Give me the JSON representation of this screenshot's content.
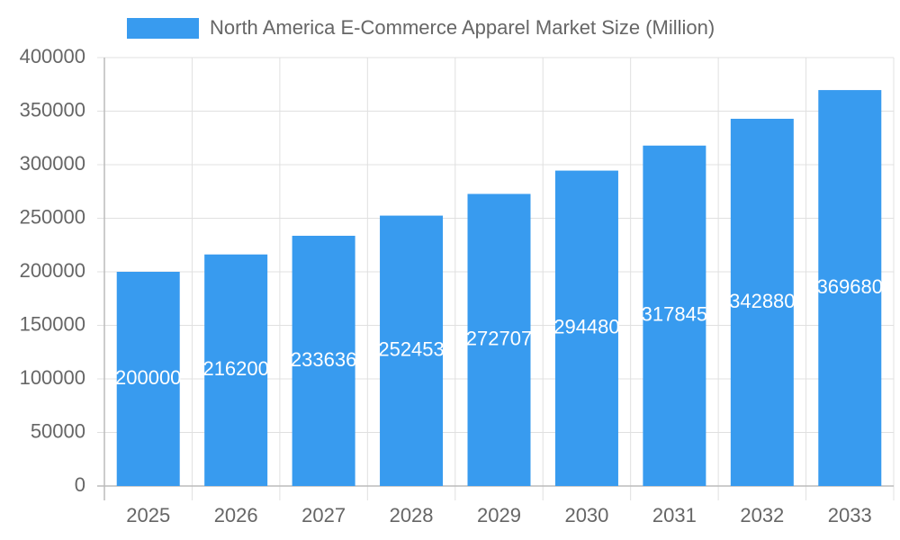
{
  "chart_data": {
    "type": "bar",
    "categories": [
      "2025",
      "2026",
      "2027",
      "2028",
      "2029",
      "2030",
      "2031",
      "2032",
      "2033"
    ],
    "series": [
      {
        "name": "North America E-Commerce Apparel Market Size (Million)",
        "color": "#389bef",
        "values": [
          200000,
          216200,
          233636,
          252453,
          272707,
          294480,
          317845,
          342880,
          369680
        ]
      }
    ],
    "ylim": [
      0,
      400000
    ],
    "yticks": [
      0,
      50000,
      100000,
      150000,
      200000,
      250000,
      300000,
      350000,
      400000
    ],
    "grid": true,
    "legend": "top"
  }
}
